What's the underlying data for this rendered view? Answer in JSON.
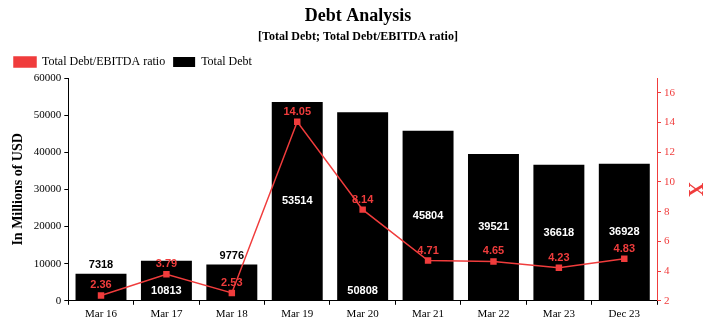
{
  "chart_data": {
    "type": "bar",
    "title": "Debt Analysis",
    "subtitle": "[Total Debt; Total Debt/EBITDA ratio]",
    "y_label": "In Millions of USD",
    "y2_label": "X",
    "categories": [
      "Mar 16",
      "Mar 17",
      "Mar 18",
      "Mar 19",
      "Mar 20",
      "Mar 21",
      "Mar 22",
      "Mar 23",
      "Dec 23"
    ],
    "series": [
      {
        "name": "Total Debt",
        "type": "bar",
        "color": "#000000",
        "values": [
          7318,
          10813,
          9776,
          53514,
          50808,
          45804,
          39521,
          36618,
          36928
        ]
      },
      {
        "name": "Total Debt/EBITDA ratio",
        "type": "line",
        "axis": "y2",
        "color": "#f03c3c",
        "marker": "square",
        "values": [
          2.36,
          3.79,
          2.53,
          14.05,
          8.14,
          4.71,
          4.65,
          4.23,
          4.83
        ]
      }
    ],
    "ylim": [
      0,
      60000
    ],
    "yticks": [
      0,
      10000,
      20000,
      30000,
      40000,
      50000,
      60000
    ],
    "y2lim": [
      2,
      17
    ],
    "y2ticks": [
      2,
      4,
      6,
      8,
      10,
      12,
      14,
      16
    ],
    "grid": false,
    "legend": "upper left",
    "data_labels": true
  }
}
